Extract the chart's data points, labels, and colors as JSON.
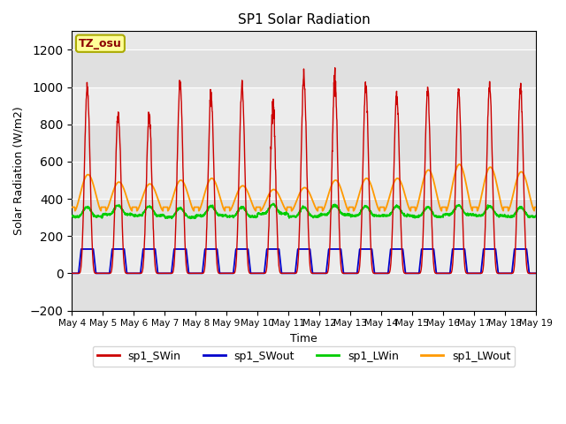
{
  "title": "SP1 Solar Radiation",
  "xlabel": "Time",
  "ylabel": "Solar Radiation (W/m2)",
  "ylim": [
    -200,
    1300
  ],
  "yticks": [
    -200,
    0,
    200,
    400,
    600,
    800,
    1000,
    1200
  ],
  "n_days": 15,
  "start_date": 4,
  "tz_label": "TZ_osu",
  "colors": {
    "SWin": "#cc0000",
    "SWout": "#0000cc",
    "LWin": "#00cc00",
    "LWout": "#ff9900"
  },
  "legend_labels": [
    "sp1_SWin",
    "sp1_SWout",
    "sp1_LWin",
    "sp1_LWout"
  ],
  "bg_color": "#ffffff",
  "band_colors": [
    "#e0e0e0",
    "#ececec"
  ]
}
